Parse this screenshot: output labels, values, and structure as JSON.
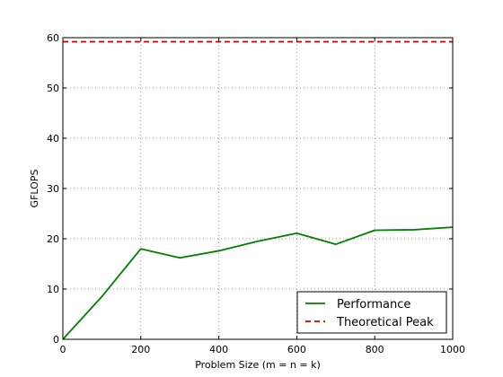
{
  "chart_data": {
    "type": "line",
    "title": "",
    "xlabel": "Problem Size (m = n = k)",
    "ylabel": "GFLOPS",
    "xlim": [
      0,
      1000
    ],
    "ylim": [
      0,
      60
    ],
    "xticks": [
      0,
      200,
      400,
      600,
      800,
      1000
    ],
    "yticks": [
      0,
      10,
      20,
      30,
      40,
      50,
      60
    ],
    "grid": true,
    "legend_position": "bottom-right",
    "series": [
      {
        "name": "Performance",
        "color": "#008000",
        "style": "solid",
        "x": [
          0,
          100,
          200,
          300,
          400,
          500,
          600,
          700,
          800,
          900,
          1000
        ],
        "y": [
          0,
          8.5,
          18.0,
          16.2,
          17.6,
          19.5,
          21.1,
          18.9,
          21.7,
          21.8,
          22.3
        ]
      },
      {
        "name": "Theoretical Peak",
        "color": "#cc0000",
        "style": "dashed",
        "x": [
          0,
          1000
        ],
        "y": [
          59.2,
          59.2
        ]
      }
    ]
  }
}
